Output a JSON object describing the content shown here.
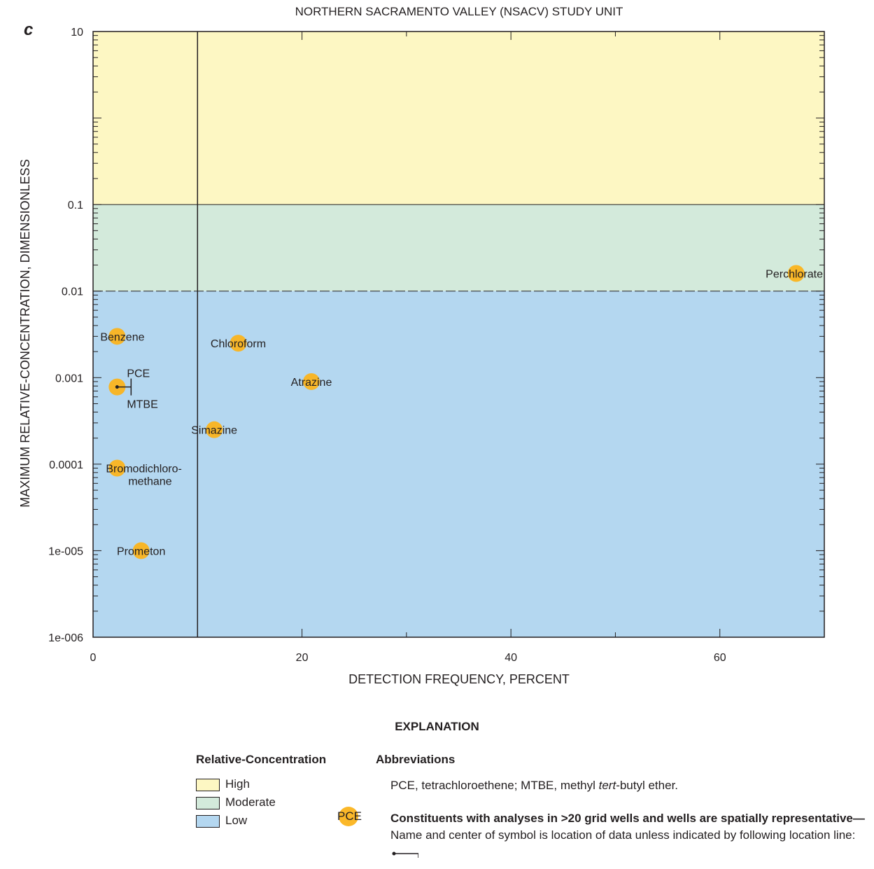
{
  "panel_letter": "c",
  "chart_data": {
    "type": "scatter",
    "title": "NORTHERN SACRAMENTO VALLEY (NSACV) STUDY UNIT",
    "xlabel": "DETECTION FREQUENCY, PERCENT",
    "ylabel": "MAXIMUM RELATIVE-CONCENTRATION, DIMENSIONLESS",
    "xlim": [
      0,
      70
    ],
    "ylim": [
      1e-06,
      10
    ],
    "y_scale": "log",
    "x_ticks": [
      0,
      20,
      40,
      60
    ],
    "x_tick_labels": [
      "0",
      "20",
      "40",
      "60"
    ],
    "y_ticks": [
      10,
      0.1,
      0.01,
      0.001,
      0.0001,
      1e-05,
      1e-06
    ],
    "y_tick_labels": [
      "10",
      "0.1",
      "0.01",
      "0.001",
      "0.0001",
      "1e-005",
      "1e-006"
    ],
    "vertical_reference_line_x": 10,
    "bands": [
      {
        "name": "High",
        "from": 0.1,
        "to": 10,
        "color": "#fdf7c3"
      },
      {
        "name": "Moderate",
        "from": 0.01,
        "to": 0.1,
        "color": "#d3eadb"
      },
      {
        "name": "Low",
        "from": 1e-06,
        "to": 0.01,
        "color": "#b4d7f0"
      }
    ],
    "points": [
      {
        "name": "Perchlorate",
        "x": 67.3,
        "y": 0.016
      },
      {
        "name": "Benzene",
        "x": 2.3,
        "y": 0.003
      },
      {
        "name": "Chloroform",
        "x": 13.9,
        "y": 0.0025
      },
      {
        "name": "Atrazine",
        "x": 20.9,
        "y": 0.0009
      },
      {
        "name": "PCE",
        "x": 2.3,
        "y": 0.00078
      },
      {
        "name": "MTBE",
        "x": 2.3,
        "y": 0.00078
      },
      {
        "name": "Simazine",
        "x": 11.6,
        "y": 0.00025
      },
      {
        "name": "Bromodichloro-\nmethane",
        "x": 2.3,
        "y": 9e-05
      },
      {
        "name": "Prometon",
        "x": 4.6,
        "y": 1e-05
      }
    ],
    "marker_color": "#fbb41d"
  },
  "legend": {
    "heading": "EXPLANATION",
    "rc_title": "Relative-Concentration",
    "rc_items": [
      {
        "label": "High",
        "color": "#fdf7c3"
      },
      {
        "label": "Moderate",
        "color": "#d3eadb"
      },
      {
        "label": "Low",
        "color": "#b4d7f0"
      }
    ],
    "abbr_title": "Abbreviations",
    "abbr_text": "PCE, tetrachloroethene; MTBE, methyl tert-butyl ether.",
    "abbr_pre": "PCE, tetrachloroethene; MTBE, methyl ",
    "abbr_italic": "tert",
    "abbr_post": "-butyl ether.",
    "symbol_label": "PCE",
    "symbol_bold": "Constituents with analyses in >20 grid wells and wells are spatially representative",
    "symbol_dash": "—",
    "symbol_text": "Name and center of symbol is location of data unless indicated by following location line:"
  }
}
